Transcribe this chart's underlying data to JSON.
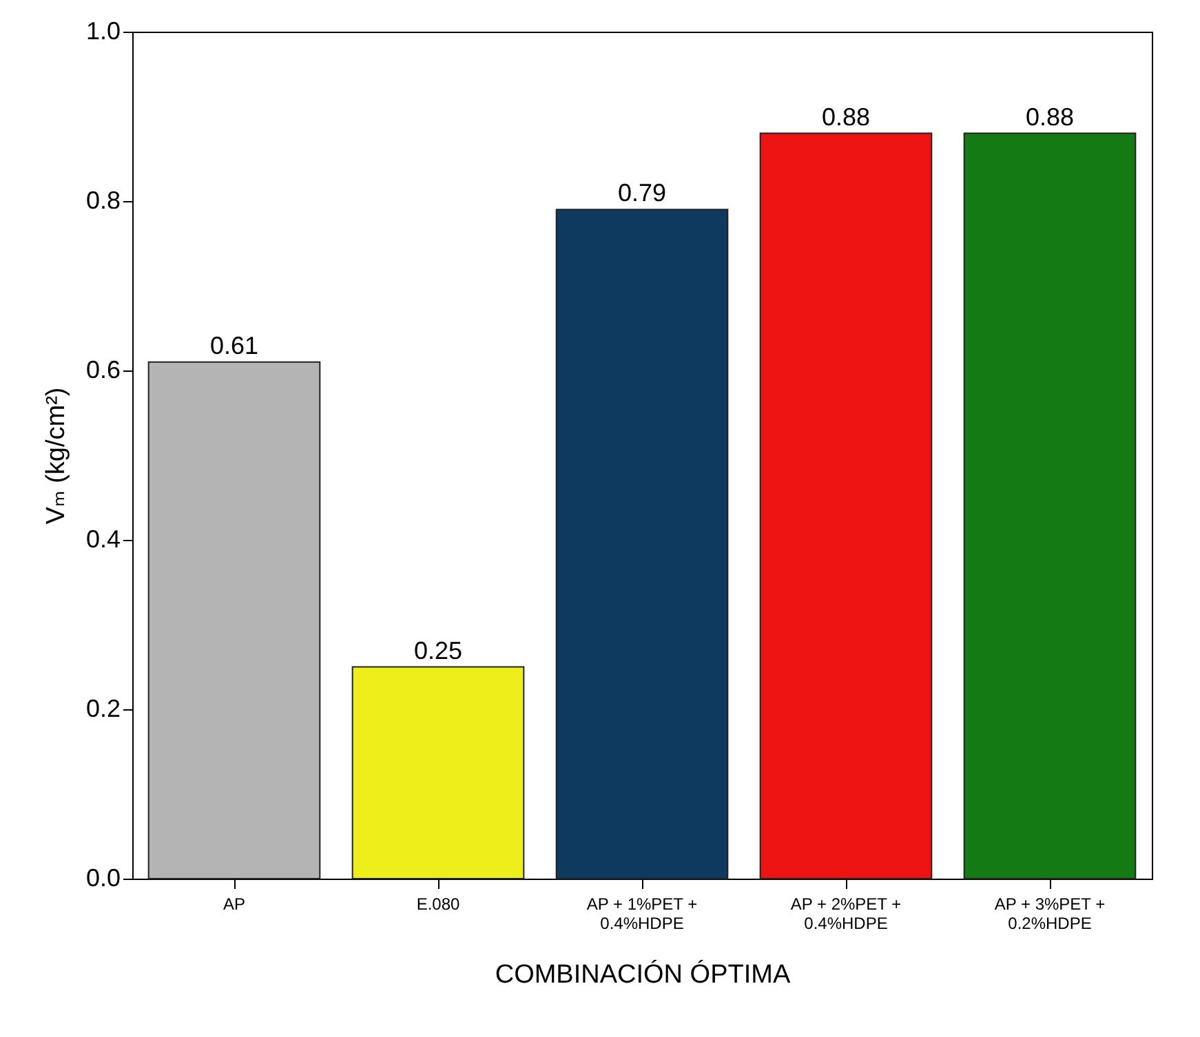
{
  "chart_data": {
    "type": "bar",
    "xlabel": "COMBINACIÓN ÓPTIMA",
    "ylabel": "Vₘ (kg/cm²)",
    "categories": [
      "AP",
      "E.080",
      "AP + 1%PET + 0.4%HDPE",
      "AP + 2%PET + 0.4%HDPE",
      "AP + 3%PET + 0.2%HDPE"
    ],
    "values": [
      0.61,
      0.25,
      0.79,
      0.88,
      0.88
    ],
    "colors": [
      "#b4b4b4",
      "#eeee1a",
      "#0f3a5f",
      "#ee1414",
      "#147a14"
    ],
    "ylim": [
      0,
      1
    ],
    "yticks": [
      {
        "value": 0,
        "label": "0.0"
      },
      {
        "value": 0.2,
        "label": "0.2"
      },
      {
        "value": 0.4,
        "label": "0.4"
      },
      {
        "value": 0.6,
        "label": "0.6"
      },
      {
        "value": 0.8,
        "label": "0.8"
      },
      {
        "value": 1,
        "label": "1.0"
      }
    ],
    "data_labels": true,
    "grid": false,
    "legend": false
  }
}
